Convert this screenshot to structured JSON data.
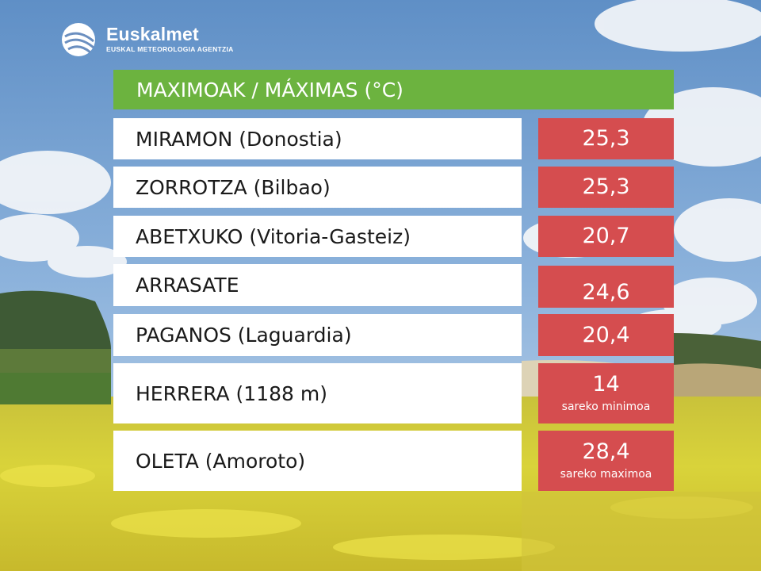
{
  "brand": {
    "name": "Euskalmet",
    "subtitle": "EUSKAL METEOROLOGIA AGENTZIA"
  },
  "header": {
    "title": "MAXIMOAK / MÁXIMAS (°C)"
  },
  "rows": [
    {
      "station": "MIRAMON (Donostia)",
      "value": "25,3",
      "note": ""
    },
    {
      "station": "ZORROTZA (Bilbao)",
      "value": "25,3",
      "note": ""
    },
    {
      "station": "ABETXUKO (Vitoria-Gasteiz)",
      "value": "20,7",
      "note": ""
    },
    {
      "station": "ARRASATE",
      "value": "24,6",
      "note": ""
    },
    {
      "station": "PAGANOS (Laguardia)",
      "value": "20,4",
      "note": ""
    },
    {
      "station": "HERRERA (1188 m)",
      "value": "14",
      "note": "sareko minimoa"
    },
    {
      "station": "OLETA (Amoroto)",
      "value": "28,4",
      "note": "sareko maximoa"
    }
  ],
  "colors": {
    "header_green": "#6cb33f",
    "value_red": "#d54d4f",
    "station_bg": "#ffffff"
  }
}
